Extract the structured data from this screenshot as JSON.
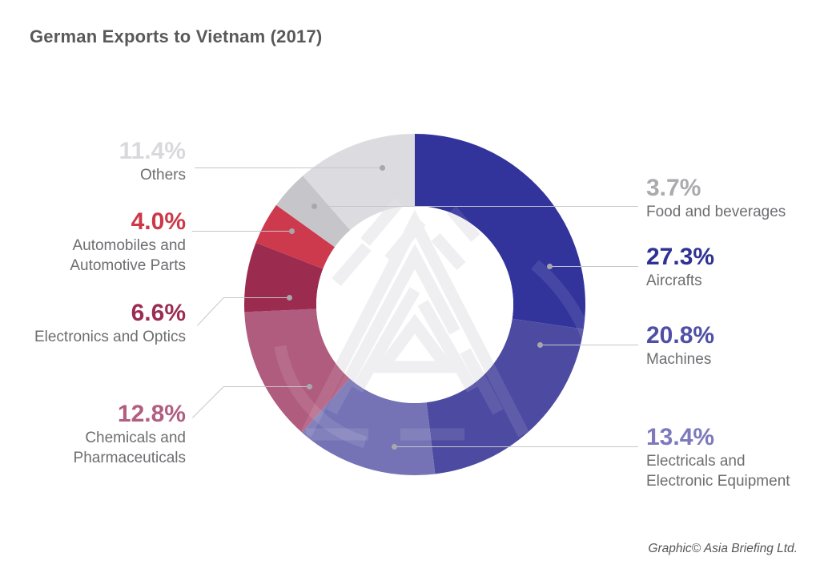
{
  "page": {
    "title": "German Exports to Vietnam (2017)",
    "credit": "Graphic© Asia Briefing Ltd."
  },
  "chart_data": {
    "type": "pie",
    "variant": "donut",
    "title": "German Exports to Vietnam (2017)",
    "start_angle_deg": 0,
    "direction": "clockwise",
    "legend_position": "callout-labels-both-sides",
    "units": "%",
    "total": 100,
    "segments": [
      {
        "label": "Aircrafts",
        "value": 27.3,
        "pct": "27.3%",
        "color": "#32339B",
        "text_color": "#2F3193",
        "name_line1": "Aircrafts",
        "name_line2": ""
      },
      {
        "label": "Machines",
        "value": 20.8,
        "pct": "20.8%",
        "color": "#4D4BA1",
        "text_color": "#4F4FA6",
        "name_line1": "Machines",
        "name_line2": ""
      },
      {
        "label": "Electricals and Electronic Equipment",
        "value": 13.4,
        "pct": "13.4%",
        "color": "#7573B5",
        "text_color": "#7C7ABD",
        "name_line1": "Electricals and",
        "name_line2": "Electronic Equipment"
      },
      {
        "label": "Chemicals and Pharmaceuticals",
        "value": 12.8,
        "pct": "12.8%",
        "color": "#B05C7E",
        "text_color": "#B25E80",
        "name_line1": "Chemicals and",
        "name_line2": "Pharmaceuticals"
      },
      {
        "label": "Electronics and Optics",
        "value": 6.6,
        "pct": "6.6%",
        "color": "#9C2B50",
        "text_color": "#9C2D52",
        "name_line1": "Electronics and Optics",
        "name_line2": ""
      },
      {
        "label": "Automobiles and Automotive Parts",
        "value": 4.0,
        "pct": "4.0%",
        "color": "#CE3A4D",
        "text_color": "#CC3848",
        "name_line1": "Automobiles and",
        "name_line2": "Automotive Parts"
      },
      {
        "label": "Food and beverages",
        "value": 3.7,
        "pct": "3.7%",
        "color": "#C6C6CA",
        "text_color": "#ABABAF",
        "name_line1": "Food and beverages",
        "name_line2": ""
      },
      {
        "label": "Others",
        "value": 11.4,
        "pct": "11.4%",
        "color": "#DCDCE0",
        "text_color": "#D9D9DD",
        "name_line1": "Others",
        "name_line2": ""
      }
    ],
    "geometry_note": "donut center (518,380), outer radius 213, inner radius 123, first segment starts at 12 o'clock clockwise",
    "leader_line_color": "#C6C6CA",
    "dot_color": "#A8A8AC"
  }
}
